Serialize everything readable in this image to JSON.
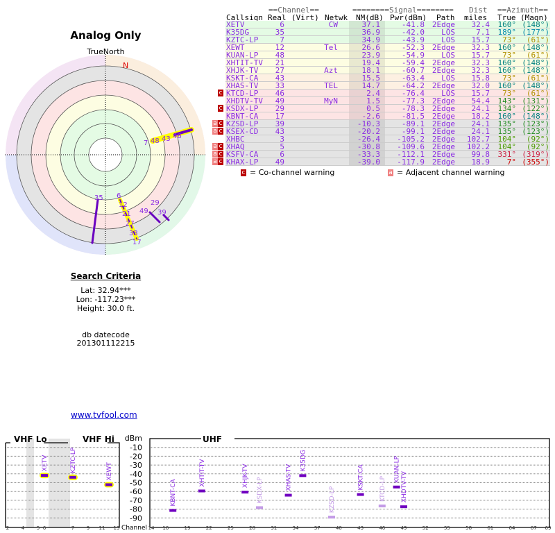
{
  "title": "Analog Only",
  "north_label": "TrueNorth",
  "north_marker": "N",
  "polar_labels": [
    "7",
    "48",
    "43",
    "46",
    "35",
    "6",
    "12",
    "21",
    "27",
    "33",
    "17",
    "49",
    "29",
    "39"
  ],
  "search": {
    "heading": "Search Criteria",
    "lat": "Lat: 32.94***",
    "lon": "Lon: -117.23***",
    "height": "Height: 30.0 ft.",
    "db_label": "db datecode",
    "db_value": "201301112215"
  },
  "link": "www.tvfool.com",
  "table": {
    "group_headers": {
      "channel": "==Channel==",
      "signal": "========Signal========",
      "dist": "Dist",
      "azimuth": "==Azimuth=="
    },
    "headers": {
      "callsign": "Callsign",
      "real": "Real",
      "virt": "(Virt)",
      "netwk": "Netwk",
      "nm": "NM(dB)",
      "pwr": "Pwr(dBm)",
      "path": "Path",
      "dist": "miles",
      "true": "True",
      "magn": "(Magn)"
    },
    "rows": [
      {
        "call": "XETV",
        "real": "6",
        "net": "CW",
        "nm": "37.1",
        "pwr": "-41.8",
        "path": "2Edge",
        "dist": "32.4",
        "true": "160°",
        "magn": "(148°)",
        "bg": "#e4fbe4",
        "az": "#008080",
        "warn": ""
      },
      {
        "call": "K35DG",
        "real": "35",
        "net": "",
        "nm": "36.9",
        "pwr": "-42.0",
        "path": "LOS",
        "dist": "7.1",
        "true": "189°",
        "magn": "(177°)",
        "bg": "#e4fbe4",
        "az": "#0088aa",
        "warn": ""
      },
      {
        "call": "KZTC-LP",
        "real": "7",
        "net": "",
        "nm": "34.9",
        "pwr": "-43.9",
        "path": "LOS",
        "dist": "15.7",
        "true": "73°",
        "magn": "(61°)",
        "bg": "#e4fbe4",
        "az": "#b09000",
        "warn": ""
      },
      {
        "call": "XEWT",
        "real": "12",
        "net": "Tel",
        "nm": "26.6",
        "pwr": "-52.3",
        "path": "2Edge",
        "dist": "32.3",
        "true": "160°",
        "magn": "(148°)",
        "bg": "#fdfde2",
        "az": "#008080",
        "warn": ""
      },
      {
        "call": "KUAN-LP",
        "real": "48",
        "net": "",
        "nm": "23.9",
        "pwr": "-54.9",
        "path": "LOS",
        "dist": "15.7",
        "true": "73°",
        "magn": "(61°)",
        "bg": "#fdfde2",
        "az": "#b09000",
        "warn": ""
      },
      {
        "call": "XHTIT-TV",
        "real": "21",
        "net": "",
        "nm": "19.4",
        "pwr": "-59.4",
        "path": "2Edge",
        "dist": "32.3",
        "true": "160°",
        "magn": "(148°)",
        "bg": "#fdfde2",
        "az": "#008080",
        "warn": ""
      },
      {
        "call": "XHJK-TV",
        "real": "27",
        "net": "Azt",
        "nm": "18.1",
        "pwr": "-60.7",
        "path": "2Edge",
        "dist": "32.3",
        "true": "160°",
        "magn": "(148°)",
        "bg": "#fdfde2",
        "az": "#008080",
        "warn": ""
      },
      {
        "call": "KSKT-CA",
        "real": "43",
        "net": "",
        "nm": "15.5",
        "pwr": "-63.4",
        "path": "LOS",
        "dist": "15.8",
        "true": "73°",
        "magn": "(61°)",
        "bg": "#fdf0e2",
        "az": "#b09000",
        "warn": ""
      },
      {
        "call": "XHAS-TV",
        "real": "33",
        "net": "TEL",
        "nm": "14.7",
        "pwr": "-64.2",
        "path": "2Edge",
        "dist": "32.0",
        "true": "160°",
        "magn": "(148°)",
        "bg": "#fdf0e2",
        "az": "#008080",
        "warn": ""
      },
      {
        "call": "KTCD-LP",
        "real": "46",
        "net": "",
        "nm": "2.4",
        "pwr": "-76.4",
        "path": "LOS",
        "dist": "15.7",
        "true": "73°",
        "magn": "(61°)",
        "bg": "#fde4e4",
        "az": "#b09000",
        "warn": "c"
      },
      {
        "call": "XHDTV-TV",
        "real": "49",
        "net": "MyN",
        "nm": "1.5",
        "pwr": "-77.3",
        "path": "2Edge",
        "dist": "54.4",
        "true": "143°",
        "magn": "(131°)",
        "bg": "#fde4e4",
        "az": "#228b22",
        "warn": ""
      },
      {
        "call": "KSDX-LP",
        "real": "29",
        "net": "",
        "nm": "0.5",
        "pwr": "-78.3",
        "path": "2Edge",
        "dist": "24.1",
        "true": "134°",
        "magn": "(122°)",
        "bg": "#fde4e4",
        "az": "#228b22",
        "warn": "c"
      },
      {
        "call": "KBNT-CA",
        "real": "17",
        "net": "",
        "nm": "-2.6",
        "pwr": "-81.5",
        "path": "2Edge",
        "dist": "18.2",
        "true": "160°",
        "magn": "(148°)",
        "bg": "#fde4e4",
        "az": "#008080",
        "warn": ""
      },
      {
        "call": "KZSD-LP",
        "real": "39",
        "net": "",
        "nm": "-10.3",
        "pwr": "-89.1",
        "path": "2Edge",
        "dist": "24.1",
        "true": "135°",
        "magn": "(123°)",
        "bg": "#e4e4e4",
        "az": "#228b22",
        "warn": "ac"
      },
      {
        "call": "KSEX-CD",
        "real": "43",
        "net": "",
        "nm": "-20.2",
        "pwr": "-99.1",
        "path": "2Edge",
        "dist": "24.1",
        "true": "135°",
        "magn": "(123°)",
        "bg": "#e4e4e4",
        "az": "#228b22",
        "warn": "ac"
      },
      {
        "call": "XHBC",
        "real": "3",
        "net": "",
        "nm": "-26.4",
        "pwr": "-105.2",
        "path": "2Edge",
        "dist": "102.7",
        "true": "104°",
        "magn": "(92°)",
        "bg": "#e4e4e4",
        "az": "#4a9a00",
        "warn": ""
      },
      {
        "call": "XHAQ",
        "real": "5",
        "net": "",
        "nm": "-30.8",
        "pwr": "-109.6",
        "path": "2Edge",
        "dist": "102.2",
        "true": "104°",
        "magn": "(92°)",
        "bg": "#e4e4e4",
        "az": "#4a9a00",
        "warn": "ac"
      },
      {
        "call": "KSFV-CA",
        "real": "6",
        "net": "",
        "nm": "-33.3",
        "pwr": "-112.1",
        "path": "2Edge",
        "dist": "99.8",
        "true": "331°",
        "magn": "(319°)",
        "bg": "#e4e4e4",
        "az": "#cc2244",
        "warn": "ac"
      },
      {
        "call": "KHAX-LP",
        "real": "49",
        "net": "",
        "nm": "-39.0",
        "pwr": "-117.9",
        "path": "2Edge",
        "dist": "18.9",
        "true": "7°",
        "magn": "(355°)",
        "bg": "#e4e4e4",
        "az": "#cc0000",
        "warn": "ac"
      }
    ],
    "legend": {
      "co_icon": "c",
      "co": "= Co-channel warning",
      "adj_icon": "a",
      "adj": "= Adjacent channel warning"
    }
  },
  "spectrum": {
    "vhf_lo": "VHF Lo",
    "vhf_hi": "VHF Hi",
    "uhf": "UHF",
    "unit": "dBm",
    "channel_label": "Channel",
    "dbm_ticks": [
      "-10",
      "-20",
      "-30",
      "-40",
      "-50",
      "-60",
      "-70",
      "-80",
      "-90"
    ],
    "vhf_ticks": [
      "2",
      "4",
      "5",
      "6",
      "7",
      "9",
      "11",
      "13"
    ],
    "uhf_ticks": [
      "14",
      "16",
      "19",
      "22",
      "25",
      "28",
      "31",
      "34",
      "37",
      "40",
      "43",
      "46",
      "49",
      "52",
      "55",
      "58",
      "61",
      "64",
      "67",
      "69"
    ],
    "stations": [
      {
        "call": "XETV",
        "ch": 6,
        "dbm": -41.8,
        "band": "vhf",
        "strong": true
      },
      {
        "call": "KZTC-LP",
        "ch": 7,
        "dbm": -43.9,
        "band": "vhf",
        "strong": true
      },
      {
        "call": "XEWT",
        "ch": 12,
        "dbm": -52.3,
        "band": "vhf",
        "strong": true
      },
      {
        "call": "KBNT-CA",
        "ch": 17,
        "dbm": -81.5,
        "band": "uhf"
      },
      {
        "call": "XHTIT-TV",
        "ch": 21,
        "dbm": -59.4,
        "band": "uhf"
      },
      {
        "call": "XHJK-TV",
        "ch": 27,
        "dbm": -60.7,
        "band": "uhf"
      },
      {
        "call": "KSDX-LP",
        "ch": 29,
        "dbm": -78.3,
        "band": "uhf",
        "faded": true
      },
      {
        "call": "XHAS-TV",
        "ch": 33,
        "dbm": -64.2,
        "band": "uhf"
      },
      {
        "call": "K35DG",
        "ch": 35,
        "dbm": -42.0,
        "band": "uhf"
      },
      {
        "call": "KZSD-LP",
        "ch": 39,
        "dbm": -89.1,
        "band": "uhf",
        "faded": true
      },
      {
        "call": "KSKT-CA",
        "ch": 43,
        "dbm": -63.4,
        "band": "uhf"
      },
      {
        "call": "KTCD-LP",
        "ch": 46,
        "dbm": -76.4,
        "band": "uhf",
        "faded": true
      },
      {
        "call": "KUAN-LP",
        "ch": 48,
        "dbm": -54.9,
        "band": "uhf"
      },
      {
        "call": "XHDTV-TV",
        "ch": 49,
        "dbm": -77.3,
        "band": "uhf"
      }
    ]
  }
}
